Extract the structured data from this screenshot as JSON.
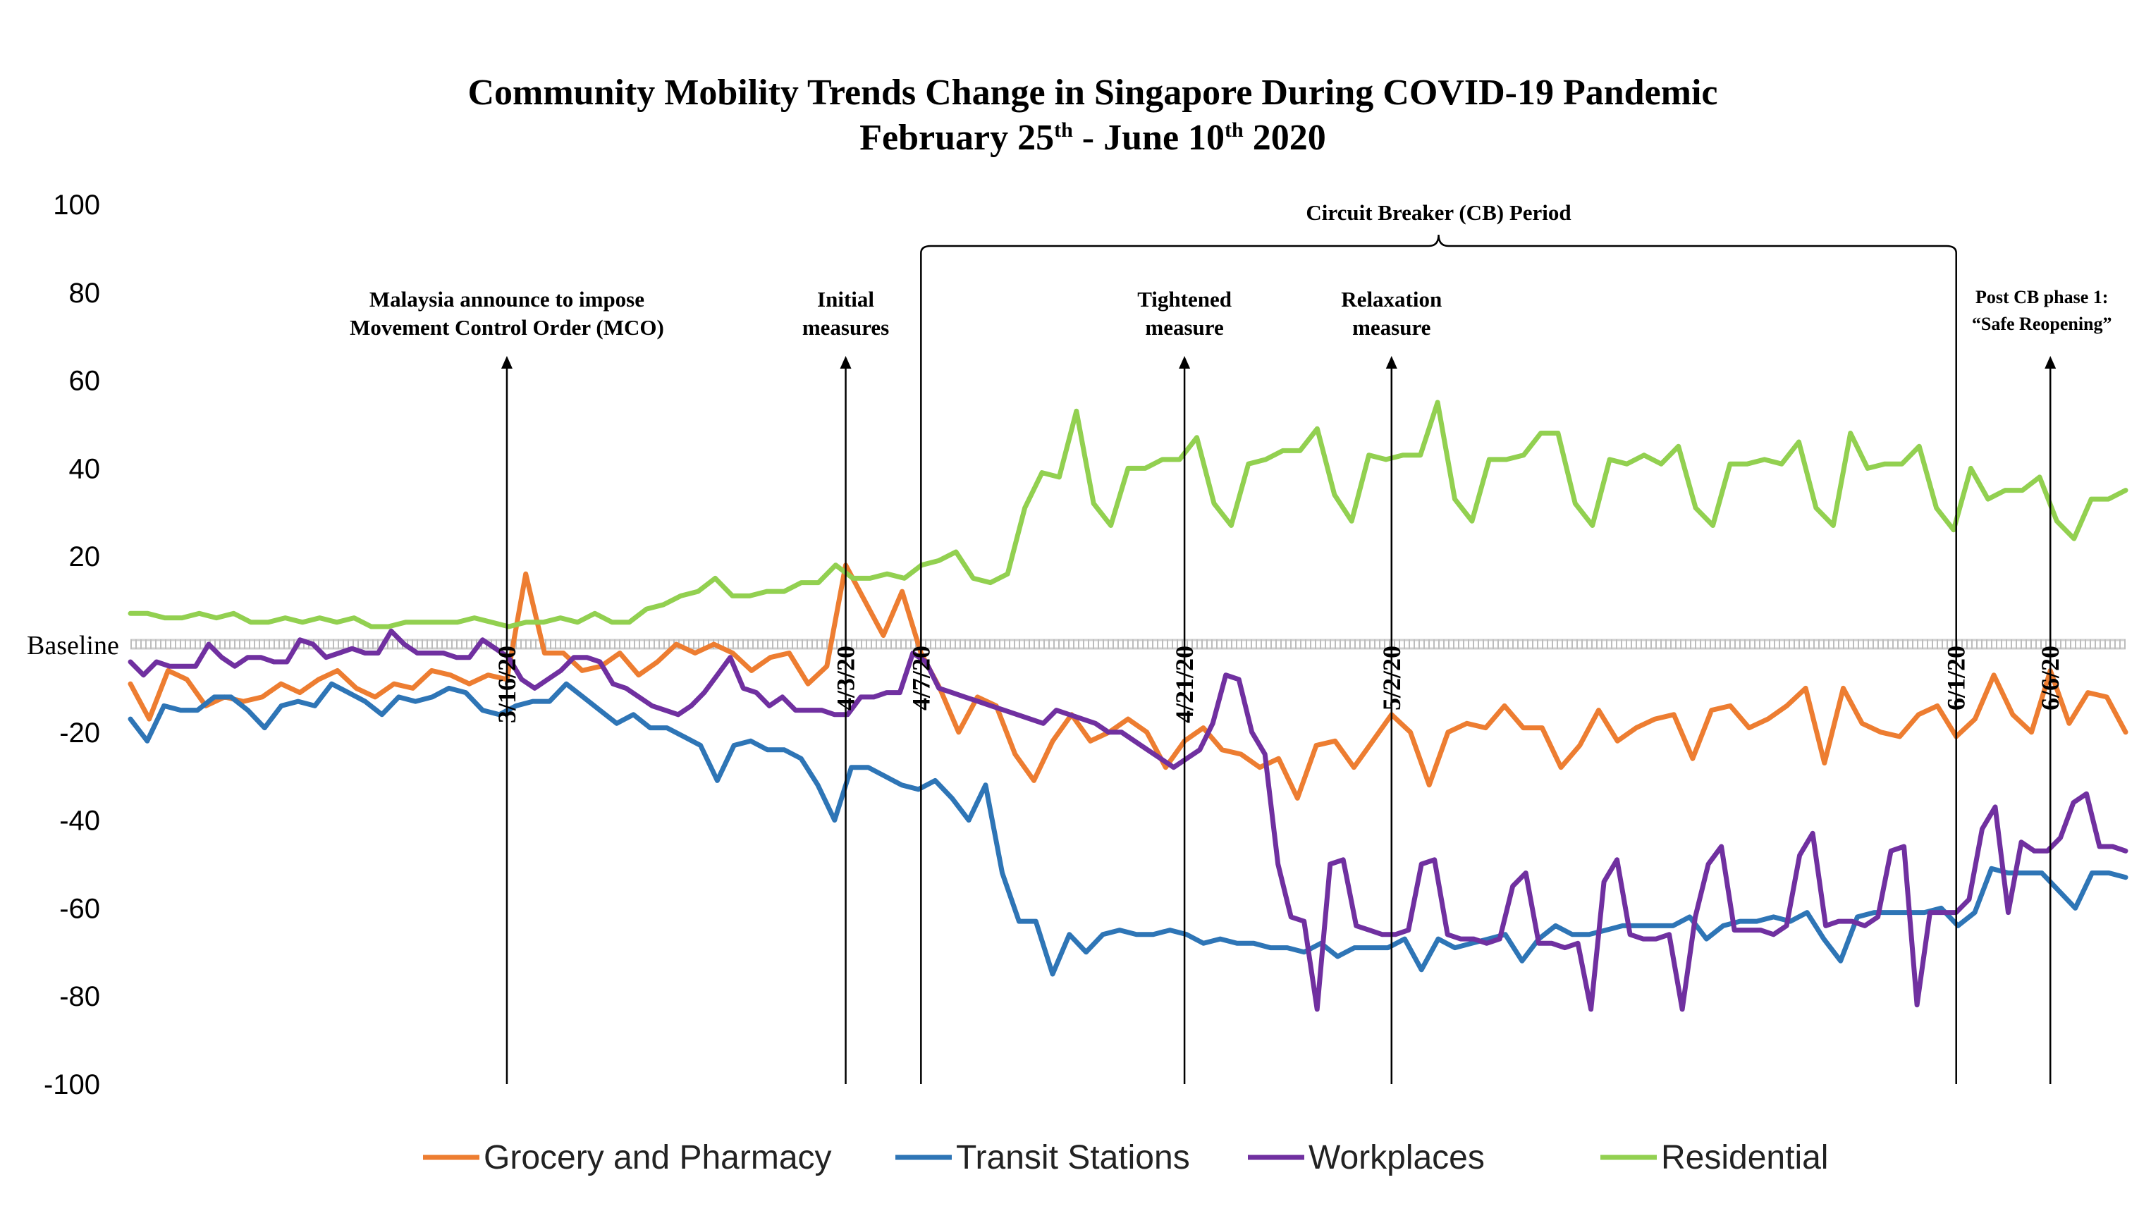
{
  "chart_data": {
    "type": "line",
    "title": "Community Mobility Trends Change in Singapore During COVID-19 Pandemic",
    "subtitle": {
      "prefix": "February 25",
      "sup1": "th",
      "middle": " - June 10",
      "sup2": "th",
      "suffix": " 2020"
    },
    "xlabel": "",
    "ylabel": "",
    "ylim": [
      -100,
      100
    ],
    "yticks": [
      "100",
      "80",
      "60",
      "40",
      "20",
      "Baseline",
      "-20",
      "-40",
      "-60",
      "-80",
      "-100"
    ],
    "baseline_label": "Baseline",
    "grid": false,
    "legend_position": "bottom",
    "x_start": "2020-02-25",
    "x_end": "2020-06-10",
    "date_markers": [
      {
        "label": "3/16/20",
        "day": 20,
        "annotation": [
          "Malaysia announce to impose",
          "Movement Control Order (MCO)"
        ]
      },
      {
        "label": "4/3/20",
        "day": 38,
        "annotation": [
          "Initial",
          "measures"
        ]
      },
      {
        "label": "4/7/20",
        "day": 42,
        "annotation": []
      },
      {
        "label": "4/21/20",
        "day": 56,
        "annotation": [
          "Tightened",
          "measure"
        ]
      },
      {
        "label": "5/2/20",
        "day": 67,
        "annotation": [
          "Relaxation",
          "measure"
        ]
      },
      {
        "label": "6/1/20",
        "day": 97,
        "annotation": []
      },
      {
        "label": "6/6/20",
        "day": 102,
        "annotation": [
          "Post CB phase 1:",
          "“Safe Reopening”"
        ]
      }
    ],
    "brace": {
      "label": "Circuit Breaker (CB) Period",
      "from_day": 42,
      "to_day": 97
    },
    "series": [
      {
        "name": "Grocery and Pharmacy",
        "color": "#ED7D31",
        "values": [
          -9,
          -17,
          -6,
          -8,
          -14,
          -12,
          -13,
          -12,
          -9,
          -11,
          -8,
          -6,
          -10,
          -12,
          -9,
          -10,
          -6,
          -7,
          -9,
          -7,
          -8,
          16,
          -2,
          -2,
          -6,
          -5,
          -2,
          -7,
          -4,
          0,
          -2,
          0,
          -2,
          -6,
          -3,
          -2,
          -9,
          -5,
          18,
          10,
          2,
          12,
          -2,
          -10,
          -20,
          -12,
          -14,
          -25,
          -31,
          -22,
          -16,
          -22,
          -20,
          -17,
          -20,
          -28,
          -22,
          -19,
          -24,
          -25,
          -28,
          -26,
          -35,
          -23,
          -22,
          -28,
          -22,
          -16,
          -20,
          -32,
          -20,
          -18,
          -19,
          -14,
          -19,
          -19,
          -28,
          -23,
          -15,
          -22,
          -19,
          -17,
          -16,
          -26,
          -15,
          -14,
          -19,
          -17,
          -14,
          -10,
          -27,
          -10,
          -18,
          -20,
          -21,
          -16,
          -14,
          -21,
          -17,
          -7,
          -16,
          -20,
          -6,
          -18,
          -11,
          -12,
          -20
        ]
      },
      {
        "name": "Transit Stations",
        "color": "#2E75B6",
        "values": [
          -17,
          -22,
          -14,
          -15,
          -15,
          -12,
          -12,
          -15,
          -19,
          -14,
          -13,
          -14,
          -9,
          -11,
          -13,
          -16,
          -12,
          -13,
          -12,
          -10,
          -11,
          -15,
          -16,
          -14,
          -13,
          -13,
          -9,
          -12,
          -15,
          -18,
          -16,
          -19,
          -19,
          -21,
          -23,
          -31,
          -23,
          -22,
          -24,
          -24,
          -26,
          -32,
          -40,
          -28,
          -28,
          -30,
          -32,
          -33,
          -31,
          -35,
          -40,
          -32,
          -52,
          -63,
          -63,
          -75,
          -66,
          -70,
          -66,
          -65,
          -66,
          -66,
          -65,
          -66,
          -68,
          -67,
          -68,
          -68,
          -69,
          -69,
          -70,
          -68,
          -71,
          -69,
          -69,
          -69,
          -67,
          -74,
          -67,
          -69,
          -68,
          -67,
          -66,
          -72,
          -67,
          -64,
          -66,
          -66,
          -65,
          -64,
          -64,
          -64,
          -64,
          -62,
          -67,
          -64,
          -63,
          -63,
          -62,
          -63,
          -61,
          -67,
          -72,
          -62,
          -61,
          -61,
          -61,
          -61,
          -60,
          -64,
          -61,
          -51,
          -52,
          -52,
          -52,
          -56,
          -60,
          -52,
          -52,
          -53
        ]
      },
      {
        "name": "Workplaces",
        "color": "#7030A0",
        "values": [
          -4,
          -7,
          -4,
          -5,
          -5,
          -5,
          0,
          -3,
          -5,
          -3,
          -3,
          -4,
          -4,
          1,
          0,
          -3,
          -2,
          -1,
          -2,
          -2,
          3,
          0,
          -2,
          -2,
          -2,
          -3,
          -3,
          1,
          -1,
          -3,
          -8,
          -10,
          -8,
          -6,
          -3,
          -3,
          -4,
          -9,
          -10,
          -12,
          -14,
          -15,
          -16,
          -14,
          -11,
          -7,
          -3,
          -10,
          -11,
          -14,
          -12,
          -15,
          -15,
          -15,
          -16,
          -16,
          -12,
          -12,
          -11,
          -11,
          -2,
          -4,
          -10,
          -11,
          -12,
          -13,
          -14,
          -15,
          -16,
          -17,
          -18,
          -15,
          -16,
          -17,
          -18,
          -20,
          -20,
          -22,
          -24,
          -26,
          -28,
          -26,
          -24,
          -18,
          -7,
          -8,
          -20,
          -25,
          -50,
          -62,
          -63,
          -83,
          -50,
          -49,
          -64,
          -65,
          -66,
          -66,
          -65,
          -50,
          -49,
          -66,
          -67,
          -67,
          -68,
          -67,
          -55,
          -52,
          -68,
          -68,
          -69,
          -68,
          -83,
          -54,
          -49,
          -66,
          -67,
          -67,
          -66,
          -83,
          -62,
          -50,
          -46,
          -65,
          -65,
          -65,
          -66,
          -64,
          -48,
          -43,
          -64,
          -63,
          -63,
          -64,
          -62,
          -47,
          -46,
          -82,
          -61,
          -61,
          -61,
          -58,
          -42,
          -37,
          -61,
          -45,
          -47,
          -47,
          -44,
          -36,
          -34,
          -46,
          -46,
          -47
        ]
      },
      {
        "name": "Residential",
        "color": "#92D050",
        "values": [
          7,
          7,
          6,
          6,
          7,
          6,
          7,
          5,
          5,
          6,
          5,
          6,
          5,
          6,
          4,
          4,
          5,
          5,
          5,
          5,
          6,
          5,
          4,
          5,
          5,
          6,
          5,
          7,
          5,
          5,
          8,
          9,
          11,
          12,
          15,
          11,
          11,
          12,
          12,
          14,
          14,
          18,
          15,
          15,
          16,
          15,
          18,
          19,
          21,
          15,
          14,
          16,
          31,
          39,
          38,
          53,
          32,
          27,
          40,
          40,
          42,
          42,
          47,
          32,
          27,
          41,
          42,
          44,
          44,
          49,
          34,
          28,
          43,
          42,
          43,
          43,
          55,
          33,
          28,
          42,
          42,
          43,
          48,
          48,
          32,
          27,
          42,
          41,
          43,
          41,
          45,
          31,
          27,
          41,
          41,
          42,
          41,
          46,
          31,
          27,
          48,
          40,
          41,
          41,
          45,
          31,
          26,
          40,
          33,
          35,
          35,
          38,
          28,
          24,
          33,
          33,
          35
        ]
      }
    ]
  }
}
